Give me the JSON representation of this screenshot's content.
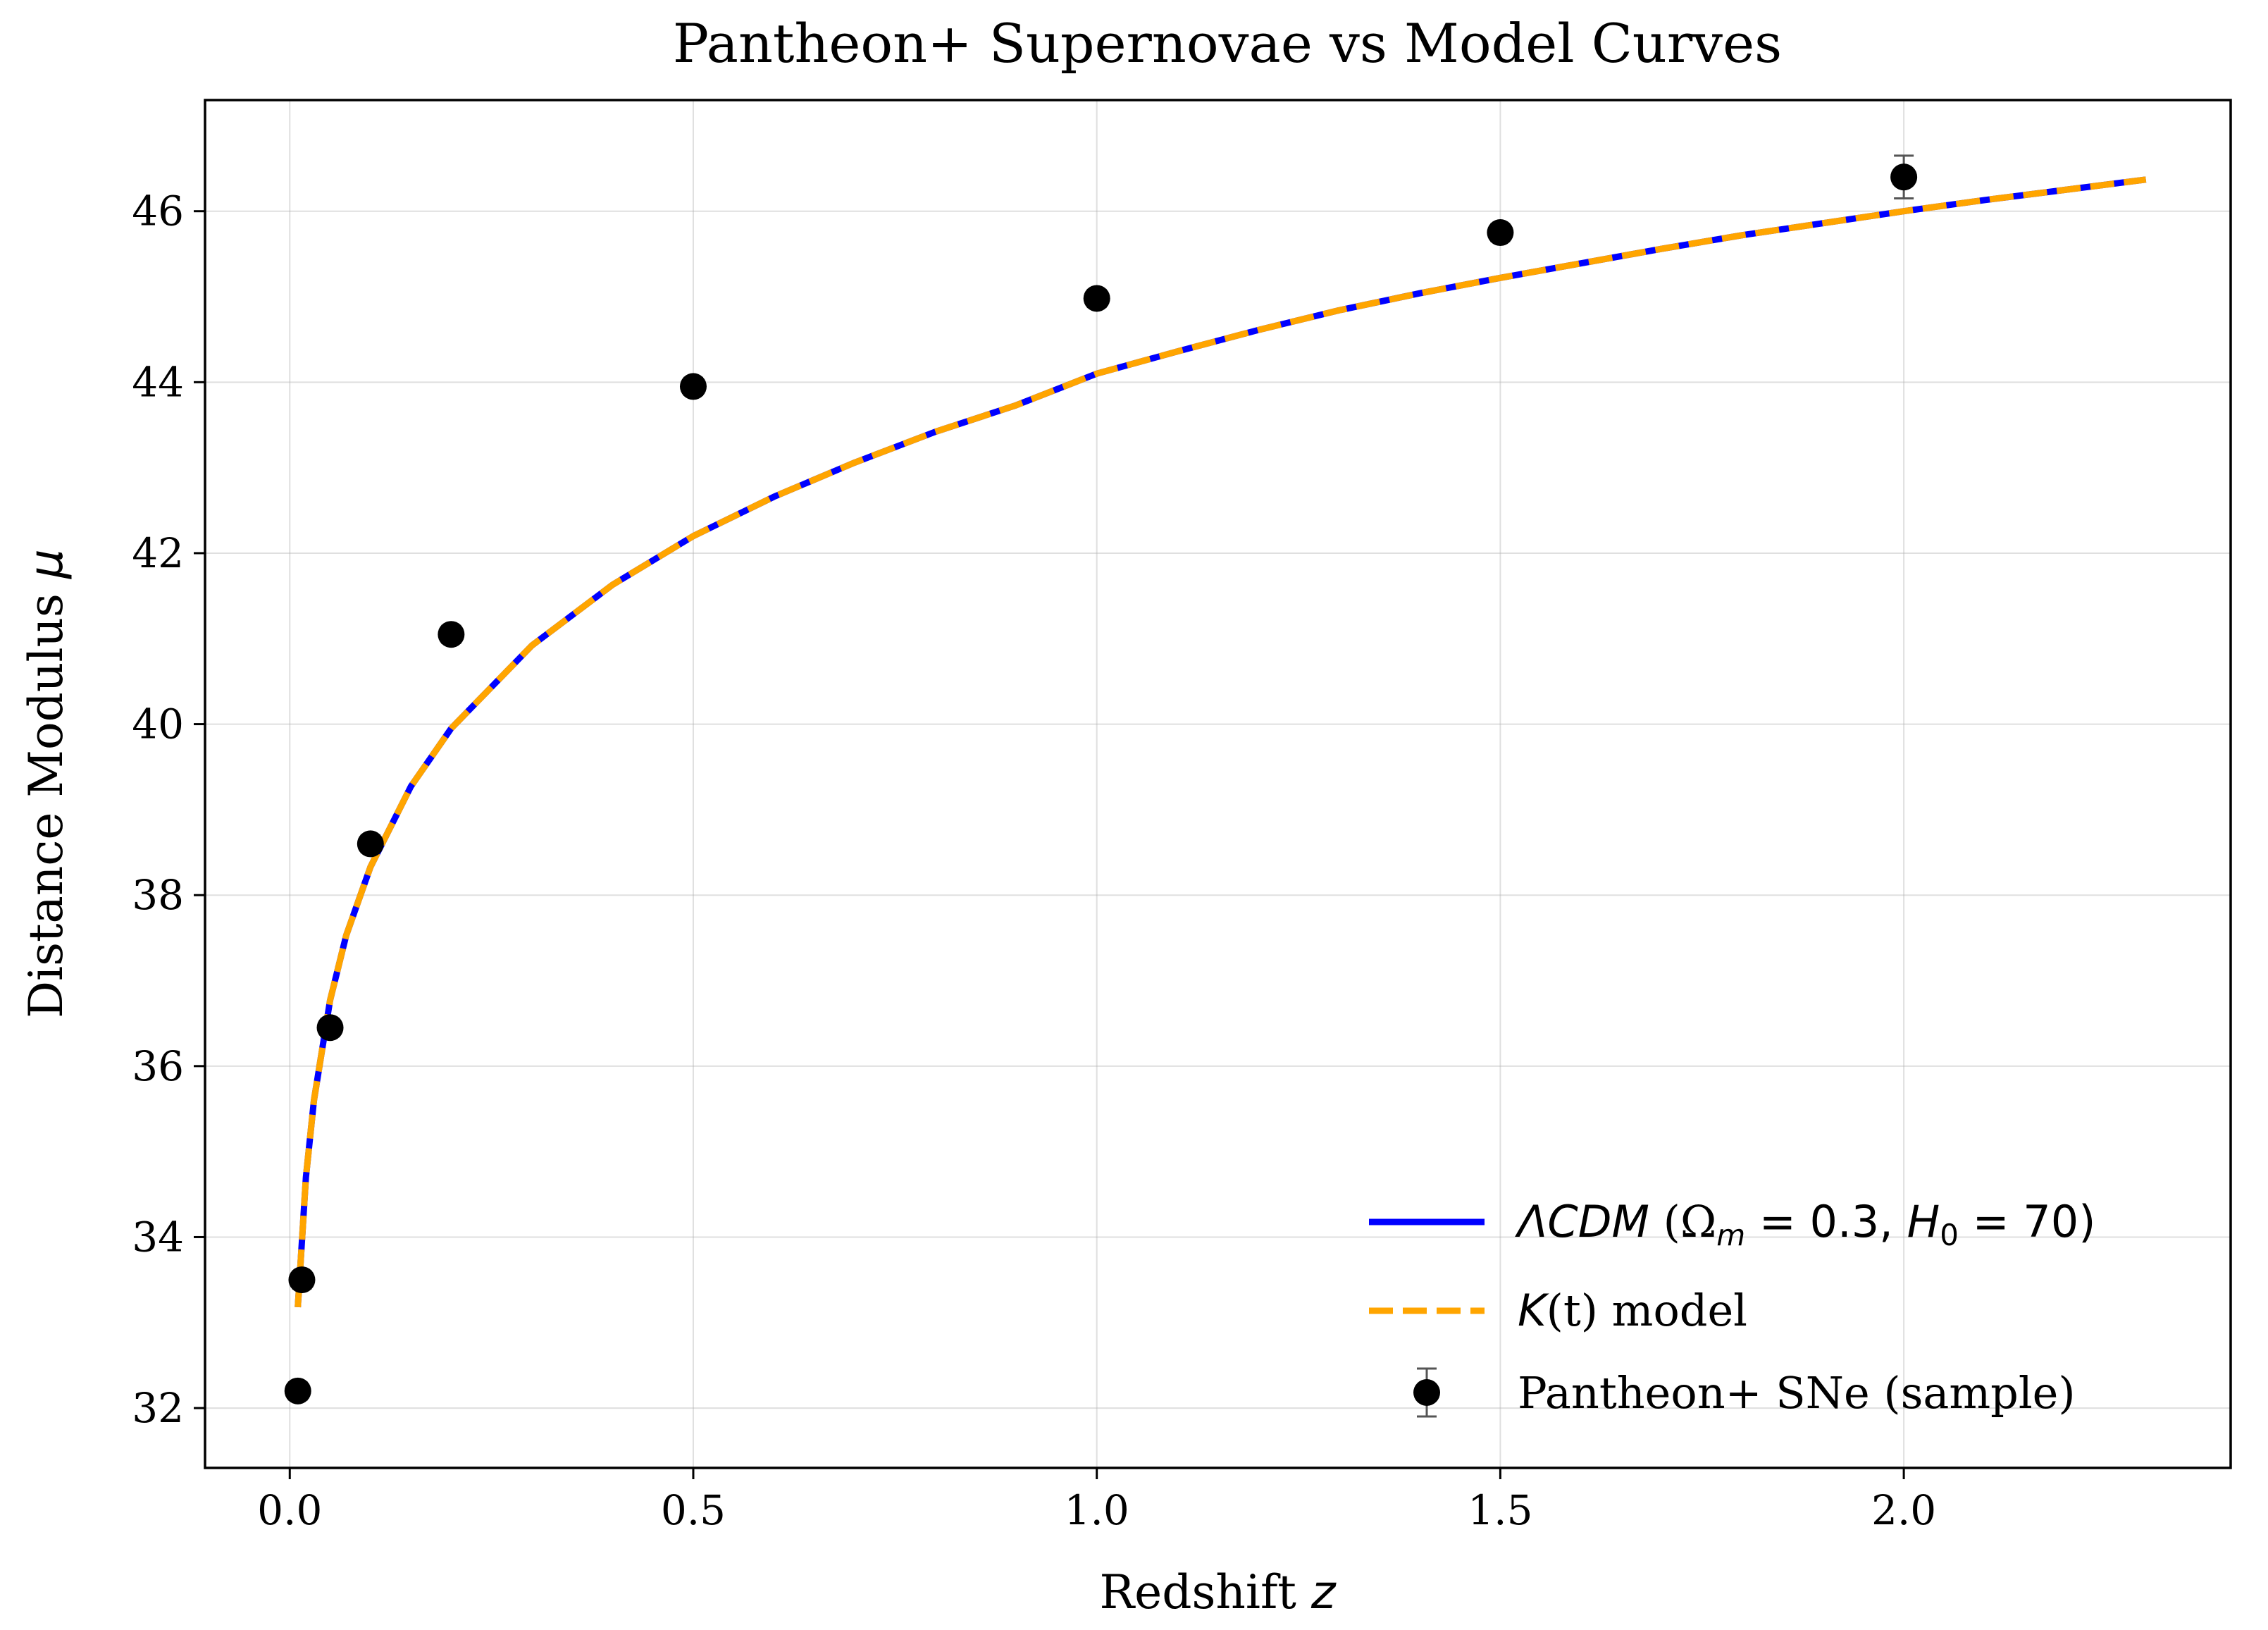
{
  "chart_data": {
    "type": "line",
    "title": "Pantheon+ Supernovae vs Model Curves",
    "xlabel": {
      "text": "Redshift ",
      "var": "z"
    },
    "ylabel": {
      "text": "Distance Modulus ",
      "var": "μ"
    },
    "xlim": [
      -0.105,
      2.405
    ],
    "ylim": [
      31.3,
      47.3
    ],
    "xticks": [
      {
        "value": 0.0,
        "label": "0.0"
      },
      {
        "value": 0.5,
        "label": "0.5"
      },
      {
        "value": 1.0,
        "label": "1.0"
      },
      {
        "value": 1.5,
        "label": "1.5"
      },
      {
        "value": 2.0,
        "label": "2.0"
      }
    ],
    "yticks": [
      {
        "value": 32,
        "label": "32"
      },
      {
        "value": 34,
        "label": "34"
      },
      {
        "value": 36,
        "label": "36"
      },
      {
        "value": 38,
        "label": "38"
      },
      {
        "value": 40,
        "label": "40"
      },
      {
        "value": 42,
        "label": "42"
      },
      {
        "value": 44,
        "label": "44"
      },
      {
        "value": 46,
        "label": "46"
      }
    ],
    "grid": true,
    "legend_position": "lower-right",
    "series": [
      {
        "name": "ΛCDM (Ωm = 0.3, H0 = 70)",
        "style": "solid",
        "color": "#0000ff",
        "x": [
          0.01,
          0.02,
          0.03,
          0.05,
          0.07,
          0.1,
          0.15,
          0.2,
          0.3,
          0.4,
          0.5,
          0.6,
          0.7,
          0.8,
          0.9,
          1.0,
          1.1,
          1.2,
          1.3,
          1.4,
          1.5,
          1.6,
          1.7,
          1.8,
          1.9,
          2.0,
          2.1,
          2.2,
          2.3
        ],
        "values": [
          33.18,
          34.7,
          35.6,
          36.77,
          37.53,
          38.33,
          39.27,
          39.95,
          40.92,
          41.63,
          42.2,
          42.66,
          43.06,
          43.42,
          43.73,
          44.1,
          44.36,
          44.61,
          44.84,
          45.04,
          45.22,
          45.39,
          45.56,
          45.72,
          45.86,
          46.0,
          46.13,
          46.25,
          46.37
        ]
      },
      {
        "name": "K(t) model",
        "style": "dashed",
        "color": "#ffa500",
        "x": [
          0.01,
          0.02,
          0.03,
          0.05,
          0.07,
          0.1,
          0.15,
          0.2,
          0.3,
          0.4,
          0.5,
          0.6,
          0.7,
          0.8,
          0.9,
          1.0,
          1.1,
          1.2,
          1.3,
          1.4,
          1.5,
          1.6,
          1.7,
          1.8,
          1.9,
          2.0,
          2.1,
          2.2,
          2.3
        ],
        "values": [
          33.18,
          34.7,
          35.6,
          36.77,
          37.53,
          38.33,
          39.27,
          39.95,
          40.92,
          41.63,
          42.2,
          42.66,
          43.06,
          43.42,
          43.73,
          44.1,
          44.36,
          44.61,
          44.84,
          45.04,
          45.22,
          45.39,
          45.56,
          45.72,
          45.86,
          46.0,
          46.13,
          46.25,
          46.37
        ]
      },
      {
        "name": "Pantheon+ SNe (sample)",
        "style": "errorbar",
        "color": "#000000",
        "x": [
          0.01,
          0.015,
          0.05,
          0.1,
          0.2,
          0.5,
          1.0,
          1.5,
          2.0
        ],
        "values": [
          32.2,
          33.5,
          36.45,
          38.6,
          41.05,
          43.95,
          44.98,
          45.75,
          46.4
        ],
        "errors": [
          0.1,
          0.1,
          0.1,
          0.1,
          0.1,
          0.1,
          0.1,
          0.1,
          0.25
        ]
      }
    ],
    "legend": [
      {
        "name": "ΛCDM",
        "open": " (Ω",
        "sub1": "m",
        "mid": " = 0.3, ",
        "h": "H",
        "sub2": "0",
        "close": " = 70)"
      },
      {
        "name": "K",
        "rest": "(t) model"
      },
      {
        "name": "Pantheon+ SNe (sample)"
      }
    ]
  }
}
